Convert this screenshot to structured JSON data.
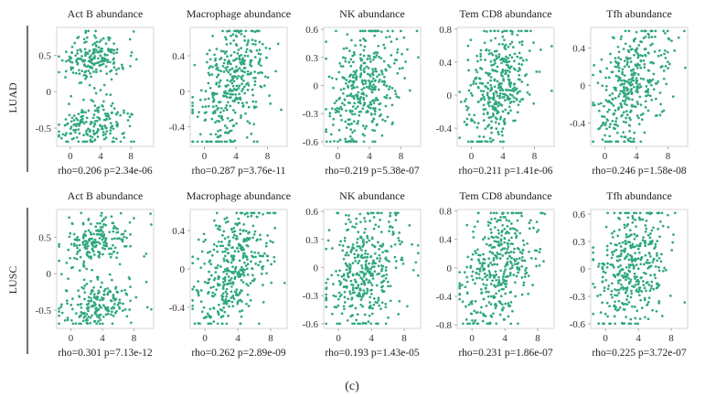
{
  "caption": "(c)",
  "point_color": "#2ea77d",
  "chart_data": [
    {
      "type": "scatter",
      "row": "LUAD",
      "title": "Act B abundance",
      "stat": "rho=0.206 p=2.34e-06",
      "x_ticks": [
        0,
        4,
        8
      ],
      "y_ticks": [
        -0.5,
        0,
        0.5
      ],
      "y_tick_labels": [
        "-0.5",
        "0",
        "0.5"
      ],
      "xlim": [
        -1.8,
        11
      ],
      "ylim": [
        -0.75,
        0.88
      ],
      "rho": 0.206,
      "n": 380
    },
    {
      "type": "scatter",
      "row": "LUAD",
      "title": "Macrophage abundance",
      "stat": "rho=0.287 p=3.76e-11",
      "x_ticks": [
        0,
        4,
        8
      ],
      "y_ticks": [
        -0.4,
        0,
        0.4
      ],
      "y_tick_labels": [
        "-0.4",
        "0",
        "0.4"
      ],
      "xlim": [
        -1.8,
        10.5
      ],
      "ylim": [
        -0.62,
        0.72
      ],
      "rho": 0.287,
      "n": 380
    },
    {
      "type": "scatter",
      "row": "LUAD",
      "title": "NK abundance",
      "stat": "rho=0.219 p=5.38e-07",
      "x_ticks": [
        0,
        4,
        8
      ],
      "y_ticks": [
        -0.6,
        -0.3,
        0,
        0.3,
        0.6
      ],
      "y_tick_labels": [
        "-0.6",
        "-0.3",
        "0",
        "0.3",
        "0.6"
      ],
      "xlim": [
        -1.8,
        10.5
      ],
      "ylim": [
        -0.65,
        0.62
      ],
      "rho": 0.219,
      "n": 380
    },
    {
      "type": "scatter",
      "row": "LUAD",
      "title": "Tem CD8 abundance",
      "stat": "rho=0.211 p=1.41e-06",
      "x_ticks": [
        0,
        4,
        8
      ],
      "y_ticks": [
        -0.4,
        0,
        0.4,
        0.8
      ],
      "y_tick_labels": [
        "-0.4",
        "0",
        "0.4",
        "0.8"
      ],
      "xlim": [
        -1.8,
        10.5
      ],
      "ylim": [
        -0.62,
        0.82
      ],
      "rho": 0.211,
      "n": 380
    },
    {
      "type": "scatter",
      "row": "LUAD",
      "title": "Tfh abundance",
      "stat": "rho=0.246 p=1.58e-08",
      "x_ticks": [
        0,
        4,
        8
      ],
      "y_ticks": [
        -0.4,
        0,
        0.4
      ],
      "y_tick_labels": [
        "-0.4",
        "0",
        "0.4"
      ],
      "xlim": [
        -1.8,
        10.5
      ],
      "ylim": [
        -0.65,
        0.62
      ],
      "rho": 0.246,
      "n": 380
    },
    {
      "type": "scatter",
      "row": "LUSC",
      "title": "Act B abundance",
      "stat": "rho=0.301 p=7.13e-12",
      "x_ticks": [
        0,
        4,
        8
      ],
      "y_ticks": [
        -0.5,
        0,
        0.5
      ],
      "y_tick_labels": [
        "-0.5",
        "0",
        "0.5"
      ],
      "xlim": [
        -1.8,
        10.5
      ],
      "ylim": [
        -0.75,
        0.88
      ],
      "rho": 0.301,
      "n": 400
    },
    {
      "type": "scatter",
      "row": "LUSC",
      "title": "Macrophage abundance",
      "stat": "rho=0.262 p=2.89e-09",
      "x_ticks": [
        0,
        4,
        8
      ],
      "y_ticks": [
        -0.4,
        0,
        0.4
      ],
      "y_tick_labels": [
        "-0.4",
        "0",
        "0.4"
      ],
      "xlim": [
        -1.8,
        10
      ],
      "ylim": [
        -0.62,
        0.62
      ],
      "rho": 0.262,
      "n": 400
    },
    {
      "type": "scatter",
      "row": "LUSC",
      "title": "NK abundance",
      "stat": "rho=0.193 p=1.43e-05",
      "x_ticks": [
        0,
        4,
        8
      ],
      "y_ticks": [
        -0.6,
        -0.3,
        0,
        0.3,
        0.6
      ],
      "y_tick_labels": [
        "-0.6",
        "-0.3",
        "0",
        "0.3",
        "0.6"
      ],
      "xlim": [
        -1.8,
        10
      ],
      "ylim": [
        -0.65,
        0.62
      ],
      "rho": 0.193,
      "n": 400
    },
    {
      "type": "scatter",
      "row": "LUSC",
      "title": "Tem CD8 abundance",
      "stat": "rho=0.231 p=1.86e-07",
      "x_ticks": [
        0,
        4,
        8
      ],
      "y_ticks": [
        -0.8,
        -0.4,
        0,
        0.4,
        0.8
      ],
      "y_tick_labels": [
        "-0.8",
        "-0.4",
        "0",
        "0.4",
        "0.8"
      ],
      "xlim": [
        -1.8,
        10
      ],
      "ylim": [
        -0.85,
        0.82
      ],
      "rho": 0.231,
      "n": 400
    },
    {
      "type": "scatter",
      "row": "LUSC",
      "title": "Tfh abundance",
      "stat": "rho=0.225 p=3.72e-07",
      "x_ticks": [
        0,
        4,
        8
      ],
      "y_ticks": [
        -0.6,
        -0.3,
        0,
        0.3,
        0.6
      ],
      "y_tick_labels": [
        "-0.6",
        "-0.3",
        "0",
        "0.3",
        "0.6"
      ],
      "xlim": [
        -1.8,
        10
      ],
      "ylim": [
        -0.65,
        0.65
      ],
      "rho": 0.225,
      "n": 400
    }
  ]
}
